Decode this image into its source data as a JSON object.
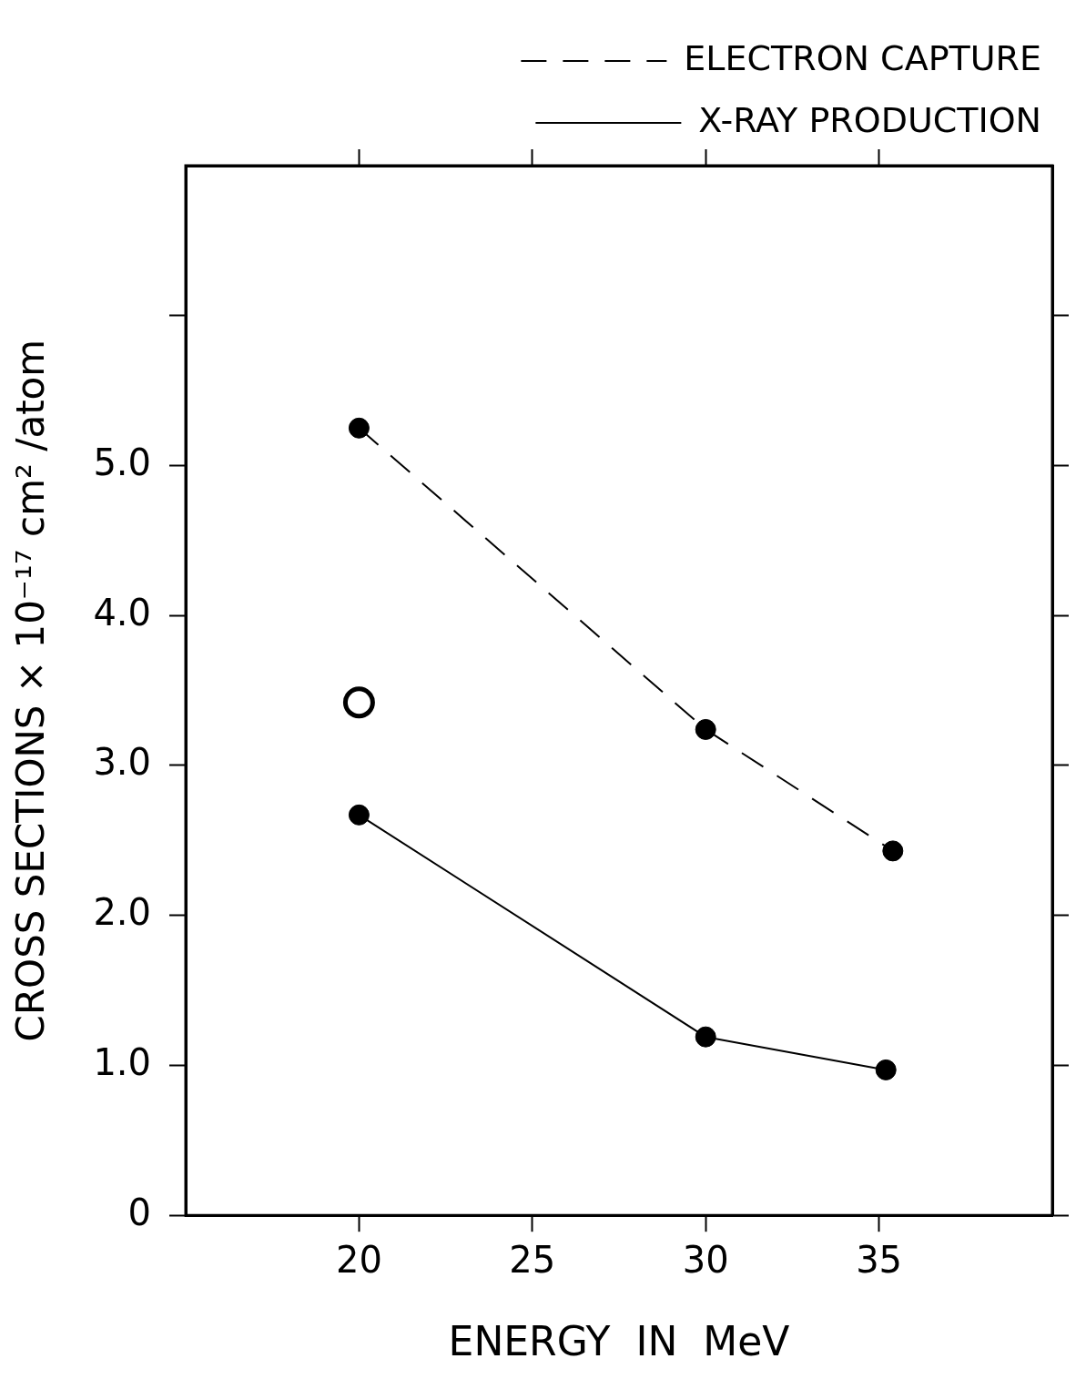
{
  "chart_data": {
    "type": "line",
    "xlabel": "ENERGY  IN  MeV",
    "ylabel": "CROSS SECTIONS × 10⁻¹⁷ cm² /atom",
    "xlim": [
      15,
      40
    ],
    "xticks": [
      20,
      25,
      30,
      35
    ],
    "ylim": [
      0,
      7
    ],
    "yticks": [
      0,
      {
        "value": 1,
        "label": "1.0"
      },
      {
        "value": 2,
        "label": "2.0"
      },
      {
        "value": 3,
        "label": "3.0"
      },
      {
        "value": 4,
        "label": "4.0"
      },
      {
        "value": 5,
        "label": "5.0"
      },
      {
        "value": 6,
        "label": null
      }
    ],
    "grid": false,
    "legend": "top right",
    "marker": "circle",
    "series": [
      {
        "name": "ELECTRON CAPTURE",
        "color": "#000000",
        "line_style": "dashed",
        "x": [
          20,
          30,
          35.4
        ],
        "values": [
          5.25,
          3.24,
          2.43
        ]
      },
      {
        "name": "X-RAY PRODUCTION",
        "color": "#000000",
        "line_style": "solid",
        "x": [
          20,
          30,
          35.2
        ],
        "values": [
          2.67,
          1.19,
          0.97
        ]
      },
      {
        "type": "scatter",
        "color": "#000000",
        "x": [
          20
        ],
        "values": [
          3.42
        ]
      }
    ]
  }
}
